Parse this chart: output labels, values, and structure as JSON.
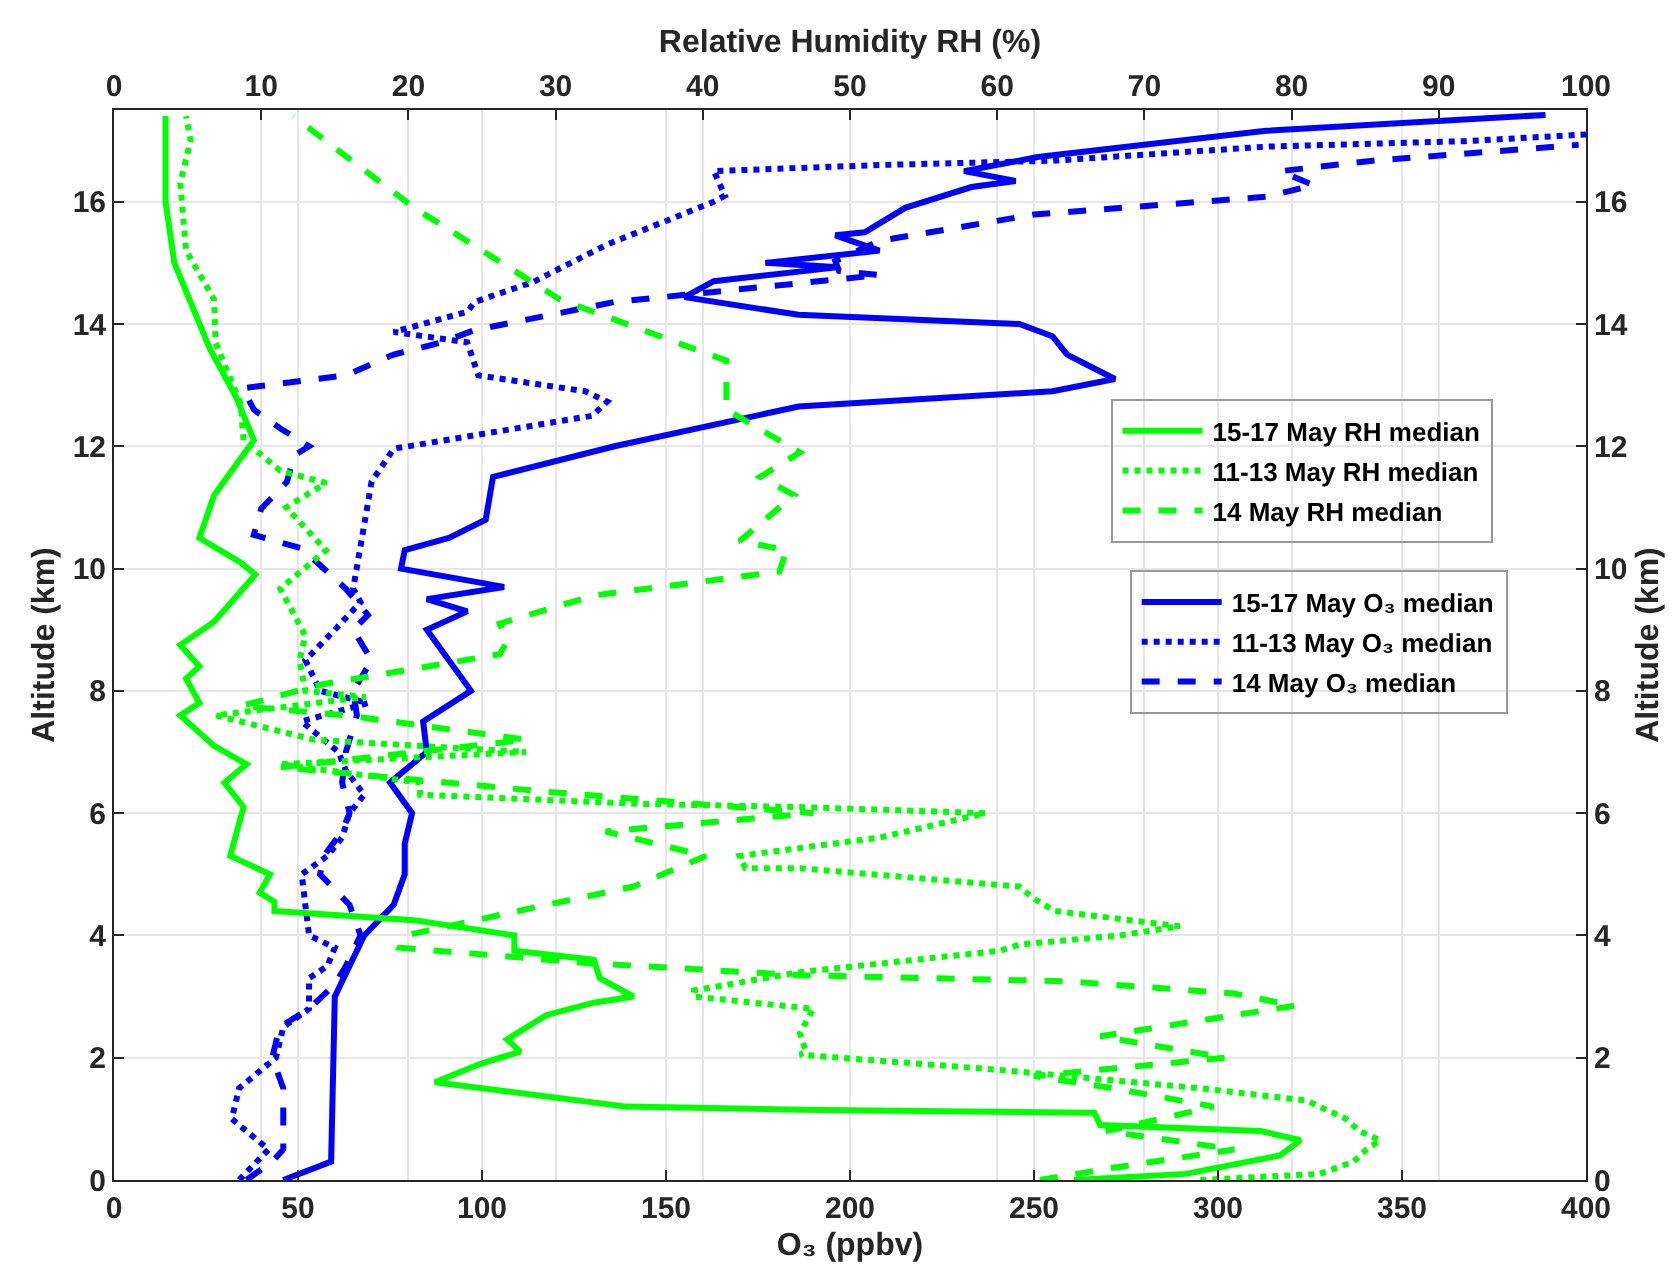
{
  "chart_data": {
    "type": "line",
    "xlabel": "O₃ (ppbv)",
    "x2label": "Relative Humidity RH (%)",
    "ylabel": "Altitude (km)",
    "y2label": "Altitude (km)",
    "xlim": [
      0,
      400
    ],
    "xticks": [
      0,
      50,
      100,
      150,
      200,
      250,
      300,
      350,
      400
    ],
    "x2lim": [
      0,
      100
    ],
    "x2ticks": [
      0,
      10,
      20,
      30,
      40,
      50,
      60,
      70,
      80,
      90,
      100
    ],
    "ylim": [
      0,
      17.5
    ],
    "yticks": [
      0,
      2,
      4,
      6,
      8,
      10,
      12,
      14,
      16
    ],
    "y2lim": [
      0,
      17.5
    ],
    "y2ticks": [
      0,
      2,
      4,
      6,
      8,
      10,
      12,
      14,
      16
    ],
    "grid": true,
    "legend": "right",
    "series": [
      {
        "name": "15-17 May RH median",
        "color": "#00ff00",
        "axis": "x2",
        "line_style": "solid",
        "x": [
          65.2,
          72.8,
          79.2,
          80.6,
          77.9,
          67.0,
          66.6,
          46.6,
          34.8,
          21.8,
          24.9,
          27.6,
          26.7,
          29.4,
          32.6,
          35.3,
          33.0,
          32.6,
          27.2,
          27.2,
          20.4,
          10.9,
          10.9,
          9.9,
          10.6,
          7.9,
          8.8,
          7.5,
          9.0,
          6.8,
          4.5,
          5.8,
          4.9,
          5.8,
          4.5,
          6.8,
          9.6,
          8.6,
          5.8,
          6.8,
          9.5,
          8.3,
          6.5,
          4.1,
          3.5,
          3.5
        ],
        "values": [
          0,
          0.1,
          0.4,
          0.65,
          0.8,
          0.9,
          1.1,
          1.15,
          1.2,
          1.6,
          1.9,
          2.1,
          2.3,
          2.7,
          2.9,
          3.0,
          3.3,
          3.6,
          3.75,
          4.0,
          4.25,
          4.4,
          4.55,
          4.7,
          5.0,
          5.3,
          6.1,
          6.5,
          6.8,
          7.1,
          7.6,
          7.8,
          8.2,
          8.4,
          8.75,
          9.13,
          9.9,
          10.1,
          10.5,
          11.2,
          12.1,
          12.8,
          13.6,
          15.0,
          16.0,
          17.4
        ]
      },
      {
        "name": "11-13 May RH median",
        "color": "#00ff00",
        "axis": "x2",
        "line_style": "dotted",
        "x": [
          73.8,
          81.9,
          84.2,
          85.1,
          86.0,
          84.6,
          83.7,
          81.0,
          73.8,
          64.7,
          60.2,
          46.6,
          47.0,
          46.6,
          47.5,
          39.4,
          39.4,
          46.6,
          60.2,
          61.5,
          68.3,
          72.4,
          63.9,
          62.5,
          61.5,
          46.6,
          42.9,
          42.5,
          52.0,
          59.2,
          46.6,
          36.1,
          20.8,
          20.8,
          11.3,
          28.0,
          13.6,
          6.9,
          17.1,
          13.0,
          12.6,
          13.0,
          11.3,
          14.4,
          11.7,
          14.4,
          11.3,
          8.8,
          8.6,
          6.9,
          6.8,
          4.9,
          4.5,
          5.2,
          4.9
        ],
        "values": [
          0,
          0.1,
          0.3,
          0.5,
          0.65,
          0.8,
          1.0,
          1.3,
          1.5,
          1.7,
          1.8,
          2.05,
          2.1,
          2.4,
          2.8,
          3.0,
          3.1,
          3.4,
          3.75,
          3.85,
          4.0,
          4.15,
          4.4,
          4.6,
          4.8,
          5.1,
          5.1,
          5.3,
          5.6,
          6.0,
          6.1,
          6.15,
          6.3,
          6.5,
          6.8,
          7.0,
          7.2,
          7.6,
          7.9,
          8.0,
          8.5,
          8.9,
          9.67,
          10.3,
          11.0,
          11.4,
          11.6,
          12.1,
          12.7,
          13.7,
          14.4,
          15.2,
          16.3,
          17.0,
          17.4
        ]
      },
      {
        "name": "14 May RH median",
        "color": "#00ff00",
        "axis": "x2",
        "line_style": "dashed",
        "x": [
          62.9,
          67.9,
          76.1,
          67.4,
          74.7,
          67.9,
          62.5,
          75.5,
          67.0,
          80.2,
          76.1,
          64.7,
          46.6,
          32.1,
          19.4,
          19.8,
          29.4,
          35.3,
          40.2,
          33.4,
          47.5,
          29.4,
          11.3,
          28.0,
          15.8,
          8.6,
          14.0,
          26.2,
          26.7,
          26.2,
          32.6,
          45.2,
          45.7,
          42.5,
          46.2,
          43.9,
          46.6,
          41.6,
          41.6,
          30.3,
          20.4,
          14.9,
          12.2
        ],
        "values": [
          0,
          0.2,
          0.5,
          0.8,
          1.2,
          1.5,
          1.7,
          2.0,
          2.35,
          2.85,
          3.05,
          3.25,
          3.35,
          3.55,
          3.8,
          4.0,
          4.5,
          4.8,
          5.3,
          5.7,
          6.0,
          6.35,
          6.75,
          7.2,
          7.6,
          7.75,
          8.1,
          8.6,
          8.8,
          9.1,
          9.56,
          9.95,
          10.3,
          10.45,
          11.2,
          11.5,
          11.9,
          12.6,
          13.4,
          14.4,
          15.9,
          16.9,
          17.4
        ]
      },
      {
        "name": "15-17 May O₃ median",
        "color": "#0000ff",
        "line_style": "solid",
        "x": [
          46,
          59,
          60,
          64,
          68,
          76,
          79,
          79,
          81,
          75,
          85,
          84,
          97,
          91,
          85,
          96,
          85,
          106,
          78,
          79,
          91,
          101,
          103,
          136,
          186,
          255,
          272,
          259,
          255,
          246,
          186,
          155,
          163,
          197,
          177,
          208,
          196,
          204,
          215,
          233,
          245,
          231,
          251,
          313,
          389
        ],
        "values": [
          0,
          0.3,
          3.0,
          3.5,
          4.0,
          4.5,
          5.0,
          5.5,
          6.0,
          6.5,
          7.0,
          7.5,
          8.0,
          8.5,
          9.0,
          9.3,
          9.5,
          9.7,
          10.0,
          10.3,
          10.5,
          10.8,
          11.5,
          12.0,
          12.65,
          12.9,
          13.1,
          13.5,
          13.8,
          14.0,
          14.15,
          14.44,
          14.7,
          14.93,
          15.0,
          15.2,
          15.45,
          15.5,
          15.9,
          16.24,
          16.34,
          16.5,
          16.73,
          17.16,
          17.42
        ]
      },
      {
        "name": "11-13 May O₃ median",
        "color": "#0000ff",
        "line_style": "dotted",
        "x": [
          34,
          42,
          32,
          34,
          44,
          46,
          53,
          53,
          58,
          60,
          53,
          52,
          51,
          58,
          62,
          64,
          68,
          63,
          61,
          51,
          69,
          56,
          52,
          60,
          67,
          65,
          70,
          76,
          130,
          134,
          128,
          99,
          96,
          76,
          96,
          98,
          114,
          134,
          163,
          166,
          163,
          208,
          255,
          313,
          367,
          400
        ],
        "values": [
          0,
          0.5,
          1.0,
          1.5,
          2.0,
          2.5,
          2.8,
          3.3,
          3.5,
          3.8,
          4.0,
          4.5,
          5.0,
          5.3,
          5.6,
          6.0,
          6.3,
          6.7,
          7.0,
          7.5,
          7.8,
          8.0,
          8.5,
          9.0,
          9.45,
          9.67,
          11.42,
          11.96,
          12.5,
          12.73,
          12.9,
          13.16,
          13.7,
          13.87,
          14.2,
          14.36,
          14.69,
          15.3,
          16.0,
          16.1,
          16.5,
          16.6,
          16.67,
          16.9,
          16.99,
          17.1
        ]
      },
      {
        "name": "14 May O₃ median",
        "color": "#0000ff",
        "line_style": "dashed",
        "x": [
          36,
          43,
          46,
          46,
          46,
          43,
          45,
          53,
          60,
          63,
          67,
          64,
          56,
          57,
          62,
          64,
          62,
          63,
          66,
          65,
          70,
          65,
          69,
          63,
          51,
          38,
          40,
          47,
          49,
          53,
          45,
          38,
          35,
          63,
          76,
          89,
          98,
          136,
          172,
          208,
          197,
          196,
          208,
          250,
          313,
          326,
          317,
          342,
          398
        ],
        "values": [
          0,
          0.3,
          0.5,
          1.0,
          1.5,
          2.0,
          2.5,
          2.8,
          3.2,
          3.5,
          4.0,
          4.5,
          5.0,
          5.3,
          5.7,
          6.0,
          6.5,
          7.0,
          7.6,
          8.0,
          8.5,
          9.0,
          9.24,
          9.67,
          10.33,
          10.55,
          10.98,
          11.42,
          11.85,
          12.0,
          12.3,
          12.6,
          12.95,
          13.16,
          13.5,
          13.7,
          13.9,
          14.36,
          14.58,
          14.8,
          14.87,
          15.03,
          15.36,
          15.79,
          16.08,
          16.27,
          16.5,
          16.67,
          16.93
        ]
      }
    ]
  }
}
